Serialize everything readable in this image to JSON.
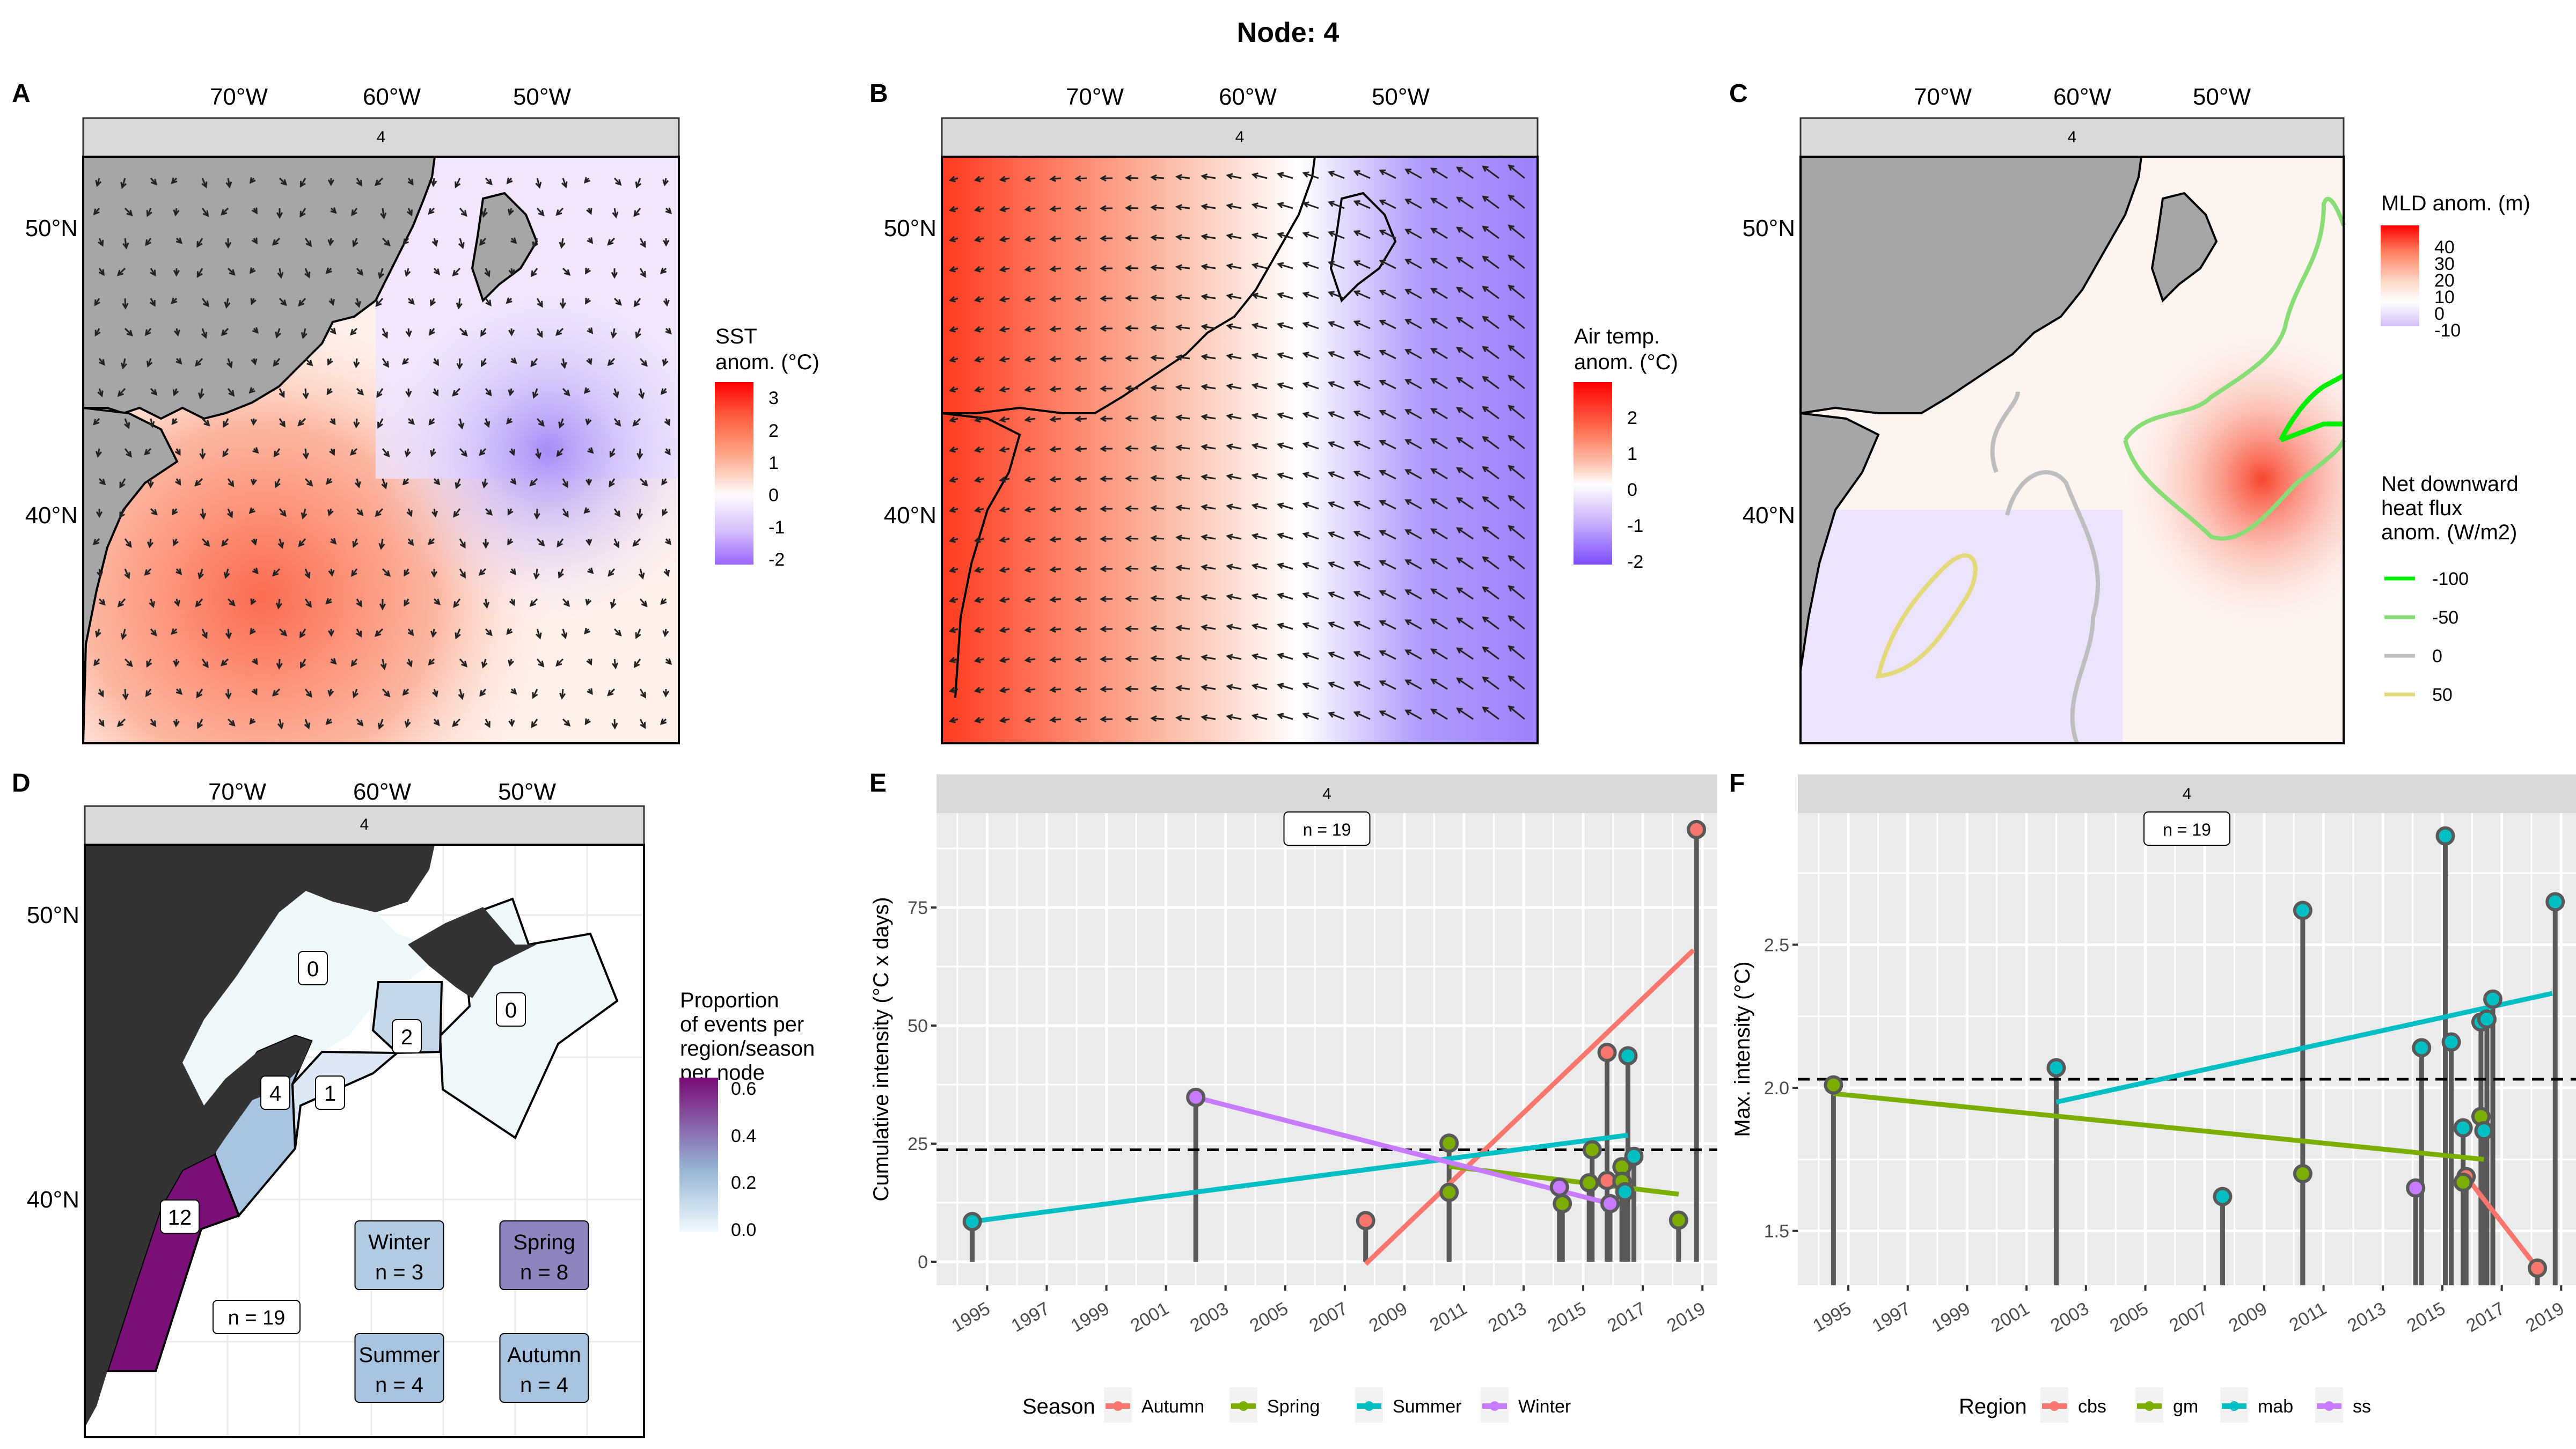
{
  "title": "Node: 4",
  "facet_label": "4",
  "panels": {
    "A": {
      "label": "A",
      "lon_ticks": [
        "70°W",
        "60°W",
        "50°W"
      ],
      "lat_ticks": [
        "50°N",
        "40°N"
      ],
      "legend": {
        "title_lines": [
          "SST",
          "anom. (°C)"
        ],
        "ticks": [
          "3",
          "2",
          "1",
          "0",
          "-1",
          "-2"
        ],
        "range": [
          -2.3,
          3.4
        ]
      }
    },
    "B": {
      "label": "B",
      "lon_ticks": [
        "70°W",
        "60°W",
        "50°W"
      ],
      "lat_ticks": [
        "50°N",
        "40°N"
      ],
      "legend": {
        "title_lines": [
          "Air temp.",
          "anom. (°C)"
        ],
        "ticks": [
          "2",
          "1",
          "0",
          "-1",
          "-2"
        ],
        "range": [
          -2.3,
          2.9
        ]
      }
    },
    "C": {
      "label": "C",
      "lon_ticks": [
        "70°W",
        "60°W",
        "50°W"
      ],
      "lat_ticks": [
        "50°N",
        "40°N"
      ],
      "legend": {
        "title": "MLD anom. (m)",
        "ticks": [
          "40",
          "30",
          "20",
          "10",
          "0",
          "-10"
        ],
        "range": [
          -13,
          47
        ]
      },
      "contour_legend": {
        "title_lines": [
          "Net downward",
          "heat flux",
          "anom. (W/m2)"
        ],
        "items": [
          {
            "label": "-100",
            "color": "#00ee00"
          },
          {
            "label": "-50",
            "color": "#88dd77"
          },
          {
            "label": "0",
            "color": "#bebebe"
          },
          {
            "label": "50",
            "color": "#e3d97a"
          }
        ]
      }
    },
    "D": {
      "label": "D",
      "lon_ticks": [
        "70°W",
        "60°W",
        "50°W"
      ],
      "lat_ticks": [
        "50°N",
        "40°N"
      ],
      "region_counts": [
        {
          "region": "gsl",
          "count": "0"
        },
        {
          "region": "ls",
          "count": "0"
        },
        {
          "region": "cbs",
          "count": "2"
        },
        {
          "region": "gm",
          "count": "4"
        },
        {
          "region": "ss",
          "count": "1"
        },
        {
          "region": "mab",
          "count": "12"
        }
      ],
      "total": "n = 19",
      "season_boxes": [
        {
          "season": "Winter",
          "n": "n = 3",
          "color": "#b3cbe3"
        },
        {
          "season": "Spring",
          "n": "n = 8",
          "color": "#8c85be"
        },
        {
          "season": "Summer",
          "n": "n = 4",
          "color": "#a9c4e0"
        },
        {
          "season": "Autumn",
          "n": "n = 4",
          "color": "#a9c4e0"
        }
      ],
      "legend": {
        "title_lines": [
          "Proportion",
          "of events per",
          "region/season",
          "per node"
        ],
        "ticks": [
          "0.6",
          "0.4",
          "0.2",
          "0.0"
        ]
      }
    }
  },
  "chart_data": [
    {
      "panel": "E",
      "type": "lollipop",
      "title": "",
      "facet": "4",
      "annotation": "n = 19",
      "xlabel": "",
      "ylabel": "Cumulative intensity (°C x days)",
      "x_ticks": [
        "1995",
        "1997",
        "1999",
        "2001",
        "2003",
        "2005",
        "2007",
        "2009",
        "2011",
        "2013",
        "2015",
        "2017",
        "2019"
      ],
      "y_ticks": [
        "0",
        "25",
        "50",
        "75"
      ],
      "xlim": [
        1993.3,
        2019.5
      ],
      "ylim": [
        -5,
        95
      ],
      "mean_line": 23.7,
      "legend_title": "Season",
      "legend_position": "bottom",
      "series": [
        {
          "name": "Autumn",
          "color": "#F8766D",
          "points": [
            [
              2007.7,
              8.7
            ],
            [
              2015.8,
              44.3
            ],
            [
              2015.8,
              17.2
            ],
            [
              2018.8,
              91.5
            ]
          ],
          "trend": [
            [
              2007.7,
              -0.5
            ],
            [
              2018.7,
              66
            ]
          ]
        },
        {
          "name": "Spring",
          "color": "#7CAE00",
          "points": [
            [
              2010.5,
              25.1
            ],
            [
              2010.5,
              14.7
            ],
            [
              2014.3,
              12.3
            ],
            [
              2015.3,
              23.7
            ],
            [
              2015.2,
              16.7
            ],
            [
              2016.3,
              20.1
            ],
            [
              2016.3,
              17.0
            ],
            [
              2018.2,
              8.8
            ]
          ],
          "trend": [
            [
              2010.5,
              20.2
            ],
            [
              2018.2,
              14.3
            ]
          ]
        },
        {
          "name": "Summer",
          "color": "#00BFC4",
          "points": [
            [
              1994.5,
              8.5
            ],
            [
              2016.5,
              43.6
            ],
            [
              2016.7,
              22.3
            ],
            [
              2016.4,
              14.8
            ]
          ],
          "trend": [
            [
              1994.5,
              8.5
            ],
            [
              2016.5,
              26.8
            ]
          ]
        },
        {
          "name": "Winter",
          "color": "#C77CFF",
          "points": [
            [
              2002.0,
              34.8
            ],
            [
              2014.2,
              15.8
            ],
            [
              2015.9,
              12.3
            ]
          ],
          "trend": [
            [
              2002.0,
              34.8
            ],
            [
              2015.9,
              12.3
            ]
          ]
        }
      ]
    },
    {
      "panel": "F",
      "type": "lollipop",
      "title": "",
      "facet": "4",
      "annotation": "n = 19",
      "xlabel": "",
      "ylabel": "Max. intensity (°C)",
      "x_ticks": [
        "1995",
        "1997",
        "1999",
        "2001",
        "2003",
        "2005",
        "2007",
        "2009",
        "2011",
        "2013",
        "2015",
        "2017",
        "2019"
      ],
      "y_ticks": [
        "1.5",
        "2.0",
        "2.5"
      ],
      "xlim": [
        1993.3,
        2019.5
      ],
      "ylim": [
        1.31,
        2.96
      ],
      "mean_line": 2.03,
      "legend_title": "Region",
      "legend_position": "bottom",
      "series": [
        {
          "name": "cbs",
          "color": "#F8766D",
          "points": [
            [
              2015.8,
              1.69
            ],
            [
              2018.2,
              1.37
            ]
          ],
          "trend": [
            [
              2015.8,
              1.69
            ],
            [
              2018.2,
              1.37
            ]
          ]
        },
        {
          "name": "gm",
          "color": "#7CAE00",
          "points": [
            [
              1994.5,
              2.01
            ],
            [
              2010.3,
              1.7
            ],
            [
              2015.7,
              1.67
            ],
            [
              2016.3,
              1.9
            ]
          ],
          "trend": [
            [
              1994.5,
              1.98
            ],
            [
              2016.4,
              1.75
            ]
          ]
        },
        {
          "name": "mab",
          "color": "#00BFC4",
          "points": [
            [
              2002.0,
              2.07
            ],
            [
              2007.6,
              1.62
            ],
            [
              2010.3,
              2.62
            ],
            [
              2014.3,
              2.14
            ],
            [
              2015.1,
              2.88
            ],
            [
              2015.3,
              2.16
            ],
            [
              2015.7,
              1.86
            ],
            [
              2016.3,
              2.23
            ],
            [
              2016.5,
              2.24
            ],
            [
              2016.7,
              2.31
            ],
            [
              2016.4,
              1.85
            ],
            [
              2018.8,
              2.65
            ]
          ],
          "trend": [
            [
              2002.0,
              1.95
            ],
            [
              2018.7,
              2.33
            ]
          ]
        },
        {
          "name": "ss",
          "color": "#C77CFF",
          "points": [
            [
              2014.1,
              1.65
            ]
          ],
          "trend": []
        }
      ]
    }
  ]
}
